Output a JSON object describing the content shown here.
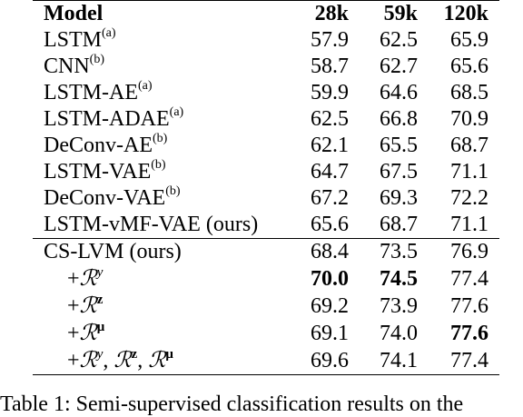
{
  "table": {
    "headers": [
      "Model",
      "28k",
      "59k",
      "120k"
    ],
    "rows": [
      {
        "name": "LSTM",
        "sup": "(a)",
        "v": [
          "57.9",
          "62.5",
          "65.9"
        ]
      },
      {
        "name": "CNN",
        "sup": "(b)",
        "v": [
          "58.7",
          "62.7",
          "65.6"
        ]
      },
      {
        "name": "LSTM-AE",
        "sup": "(a)",
        "v": [
          "59.9",
          "64.6",
          "68.5"
        ]
      },
      {
        "name": "LSTM-ADAE",
        "sup": "(a)",
        "v": [
          "62.5",
          "66.8",
          "70.9"
        ]
      },
      {
        "name": "DeConv-AE",
        "sup": "(b)",
        "v": [
          "62.1",
          "65.5",
          "68.7"
        ]
      },
      {
        "name": "LSTM-VAE",
        "sup": "(b)",
        "v": [
          "64.7",
          "67.5",
          "71.1"
        ]
      },
      {
        "name": "DeConv-VAE",
        "sup": "(b)",
        "v": [
          "67.2",
          "69.3",
          "72.2"
        ]
      },
      {
        "name": "LSTM-vMF-VAE (ours)",
        "v": [
          "65.6",
          "68.7",
          "71.1"
        ]
      },
      {
        "name": "CS-LVM (ours)",
        "v": [
          "68.4",
          "73.5",
          "76.9"
        ]
      },
      {
        "plus": "+",
        "R": "ℛ",
        "sup": "y",
        "v": [
          "70.0",
          "74.5",
          "77.4"
        ]
      },
      {
        "plus": "+",
        "R": "ℛ",
        "sup": "z",
        "v": [
          "69.2",
          "73.9",
          "77.6"
        ]
      },
      {
        "plus": "+",
        "R": "ℛ",
        "sup": "μ",
        "v": [
          "69.1",
          "74.0",
          "77.6"
        ]
      },
      {
        "plus": "+",
        "R": "ℛ",
        "sup": "y",
        "sep": ",",
        "v": [
          "69.6",
          "74.1",
          "77.4"
        ]
      }
    ]
  },
  "caption": "Table 1: Semi-supervised classification results on the"
}
